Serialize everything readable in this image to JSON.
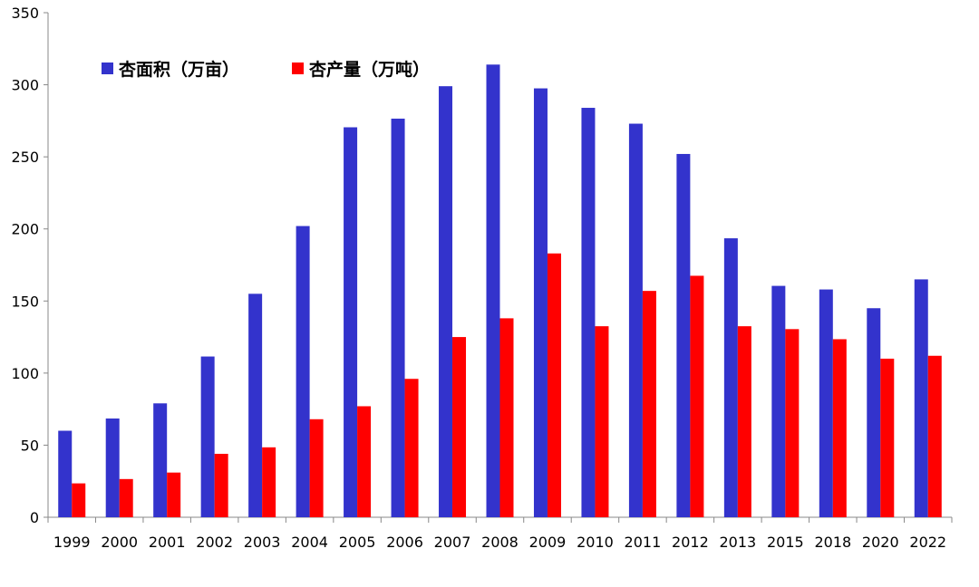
{
  "chart_data": {
    "type": "bar",
    "title": "",
    "xlabel": "",
    "ylabel": "",
    "categories": [
      "1999",
      "2000",
      "2001",
      "2002",
      "2003",
      "2004",
      "2005",
      "2006",
      "2007",
      "2008",
      "2009",
      "2010",
      "2011",
      "2012",
      "2013",
      "2015",
      "2018",
      "2020",
      "2022"
    ],
    "series": [
      {
        "name": "杏面积（万亩）",
        "color": "#3333CC",
        "values": [
          60,
          68.5,
          79,
          111.5,
          155,
          202,
          270.5,
          276.5,
          299,
          314,
          297.5,
          284,
          273,
          252,
          193.5,
          160.5,
          158,
          145,
          165
        ]
      },
      {
        "name": "杏产量（万吨）",
        "color": "#FF0000",
        "values": [
          23.5,
          26.5,
          31,
          44,
          48.5,
          68,
          77,
          96,
          125,
          138,
          183,
          132.5,
          157,
          167.5,
          132.5,
          130.5,
          123.5,
          110,
          112
        ]
      }
    ],
    "ylim": [
      0,
      350
    ],
    "yticks": [
      0,
      50,
      100,
      150,
      200,
      250,
      300,
      350
    ],
    "grid": false,
    "legend_position": "top-left"
  }
}
